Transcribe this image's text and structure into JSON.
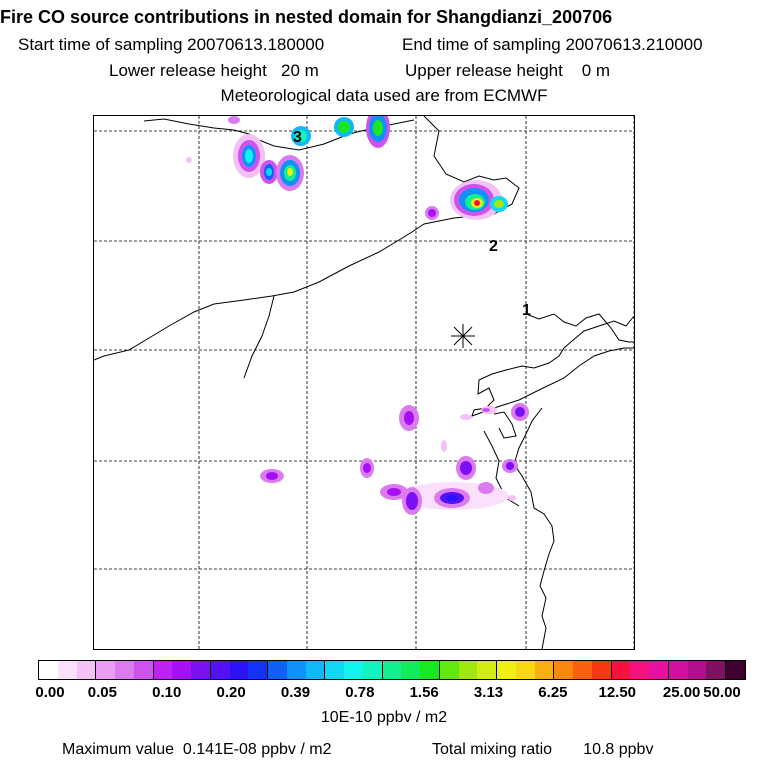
{
  "header": {
    "title": "Fire CO source contributions in nested domain for Shangdianzi_200706",
    "start_time": "Start time of sampling 20070613.180000",
    "end_time": "End time of sampling 20070613.210000",
    "lower_release": "Lower release height   20 m",
    "upper_release": "Upper release height    0 m",
    "met_data": "Meteorological data used are from ECMWF"
  },
  "map": {
    "markers": [
      "1",
      "2",
      "3"
    ],
    "station_symbol": "station-star-icon"
  },
  "colorbar": {
    "ticks": [
      "0.00",
      "0.05",
      "0.10",
      "0.20",
      "0.39",
      "0.78",
      "1.56",
      "3.13",
      "6.25",
      "12.50",
      "25.00",
      "50.00"
    ],
    "colors": [
      "#ffffff",
      "#fbe0fb",
      "#f3c0f7",
      "#ea9ef3",
      "#dc7af0",
      "#cd52ee",
      "#bf22f0",
      "#a510f4",
      "#7c10f4",
      "#5410f6",
      "#2c12f8",
      "#1532f8",
      "#1060f8",
      "#1090f8",
      "#10b8f6",
      "#10d8f4",
      "#10f4ec",
      "#10f4c0",
      "#10f090",
      "#10ec5c",
      "#18e820",
      "#60e810",
      "#a0e810",
      "#d0ec10",
      "#f0f010",
      "#f8d810",
      "#f8b010",
      "#f88810",
      "#f86010",
      "#f83810",
      "#f81040",
      "#f81080",
      "#e810a0",
      "#d010a0",
      "#b01090",
      "#801060",
      "#400030"
    ],
    "units": "10E-10 ppbv / m2"
  },
  "footer": {
    "max_value": "Maximum value  0.141E-08 ppbv / m2",
    "total_mixing": "Total mixing ratio       10.8 ppbv"
  }
}
